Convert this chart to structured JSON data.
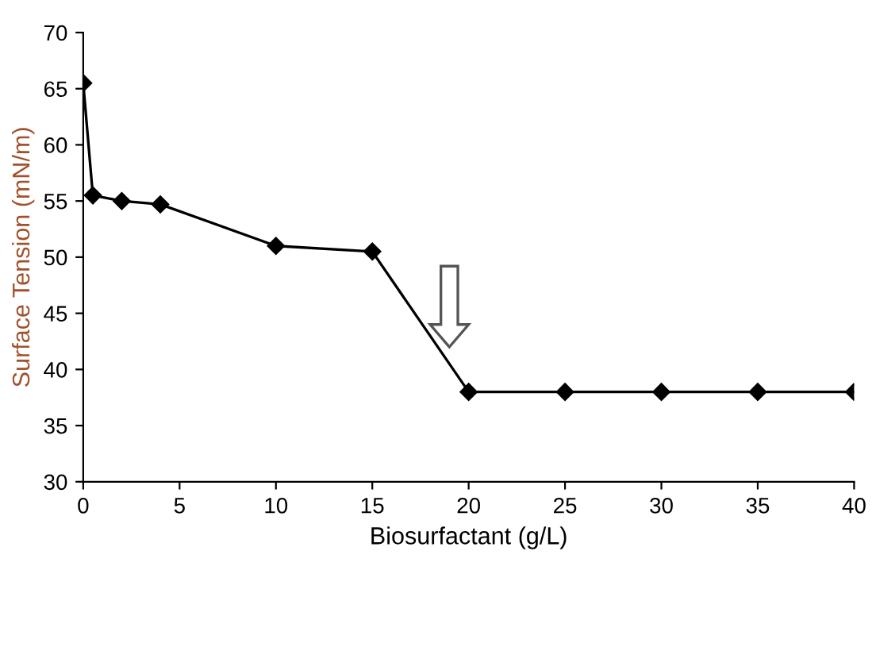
{
  "chart_data": {
    "type": "line",
    "xlabel": "Biosurfactant (g/L)",
    "ylabel": "Surface Tension (mN/m)",
    "x": [
      0,
      0.5,
      2,
      4,
      10,
      15,
      20,
      25,
      30,
      35,
      40
    ],
    "series": [
      {
        "color": "#000000",
        "values": [
          65.5,
          55.5,
          55,
          54.7,
          51,
          50.5,
          38,
          38,
          38,
          38,
          38
        ]
      }
    ],
    "xlim": [
      0,
      40
    ],
    "ylim": [
      30,
      70
    ],
    "xticks": [
      0,
      5,
      10,
      15,
      20,
      25,
      30,
      35,
      40
    ],
    "yticks": [
      30,
      35,
      40,
      45,
      50,
      55,
      60,
      65,
      70
    ],
    "marker": "diamond",
    "line_style": "solid",
    "grid": false,
    "legend": false
  }
}
